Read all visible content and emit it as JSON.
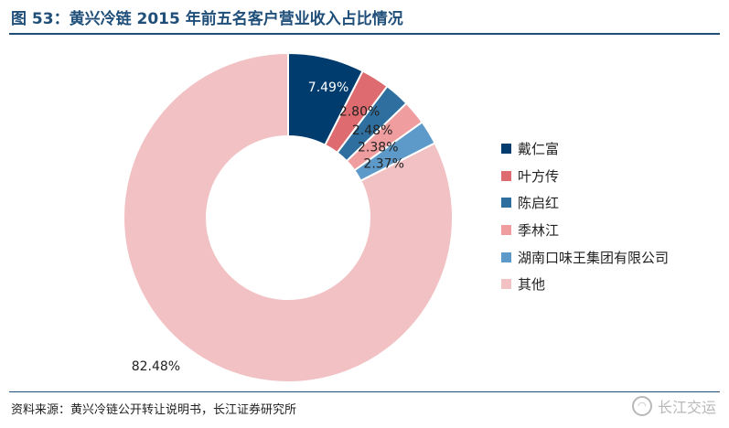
{
  "title": "图 53：黄兴冷链 2015 年前五名客户营业收入占比情况",
  "source": "资料来源：黄兴冷链公开转让说明书，长江证券研究所",
  "watermark": {
    "text": "长江交运",
    "icon": "wechat-logo-icon"
  },
  "chart_data": {
    "type": "pie",
    "variant": "donut",
    "title": "图 53：黄兴冷链 2015 年前五名客户营业收入占比情况",
    "legend_position": "right",
    "start": "top",
    "direction": "clockwise",
    "slices": [
      {
        "name": "戴仁富",
        "value": 7.49,
        "label": "7.49%",
        "color": "#003d6e"
      },
      {
        "name": "叶方传",
        "value": 2.8,
        "label": "2.80%",
        "color": "#de6b6f"
      },
      {
        "name": "陈启红",
        "value": 2.48,
        "label": "2.48%",
        "color": "#2f6f9f"
      },
      {
        "name": "季林江",
        "value": 2.38,
        "label": "2.38%",
        "color": "#ef9d9f"
      },
      {
        "name": "湖南口味王集团有限公司",
        "value": 2.37,
        "label": "2.37%",
        "color": "#5e9ac9"
      },
      {
        "name": "其他",
        "value": 82.48,
        "label": "82.48%",
        "color": "#f2c1c4"
      }
    ]
  }
}
